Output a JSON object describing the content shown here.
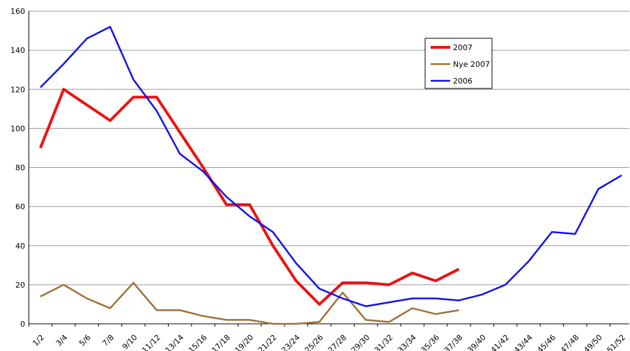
{
  "chart_data": {
    "type": "line",
    "categories": [
      "1/2",
      "3/4",
      "5/6",
      "7/8",
      "9/10",
      "11/12",
      "13/14",
      "15/16",
      "17/18",
      "19/20",
      "21/22",
      "23/24",
      "25/26",
      "27/28",
      "29/30",
      "31/32",
      "33/34",
      "35/36",
      "37/38",
      "39/40",
      "41/42",
      "43/44",
      "45/46",
      "47/48",
      "49/50",
      "51/52"
    ],
    "series": [
      {
        "name": "2007",
        "color": "#ee1111",
        "values": [
          90,
          120,
          112,
          104,
          116,
          116,
          98,
          80,
          61,
          61,
          40,
          22,
          10,
          21,
          21,
          20,
          26,
          22,
          28,
          null,
          null,
          null,
          null,
          null,
          null,
          null
        ]
      },
      {
        "name": "Nye 2007",
        "color": "#a0703a",
        "values": [
          14,
          20,
          13,
          8,
          21,
          7,
          7,
          4,
          2,
          2,
          0,
          0,
          1,
          16,
          2,
          1,
          8,
          5,
          7,
          null,
          null,
          null,
          null,
          null,
          null,
          null
        ]
      },
      {
        "name": "2006",
        "color": "#1111ee",
        "values": [
          121,
          133,
          146,
          152,
          125,
          109,
          87,
          78,
          65,
          55,
          47,
          31,
          18,
          13,
          9,
          11,
          13,
          13,
          12,
          15,
          20,
          32,
          47,
          46,
          69,
          76
        ]
      }
    ],
    "ylim": [
      0,
      160
    ],
    "yticks": [
      0,
      20,
      40,
      60,
      80,
      100,
      120,
      140,
      160
    ],
    "grid": true,
    "legend": "upper right"
  }
}
